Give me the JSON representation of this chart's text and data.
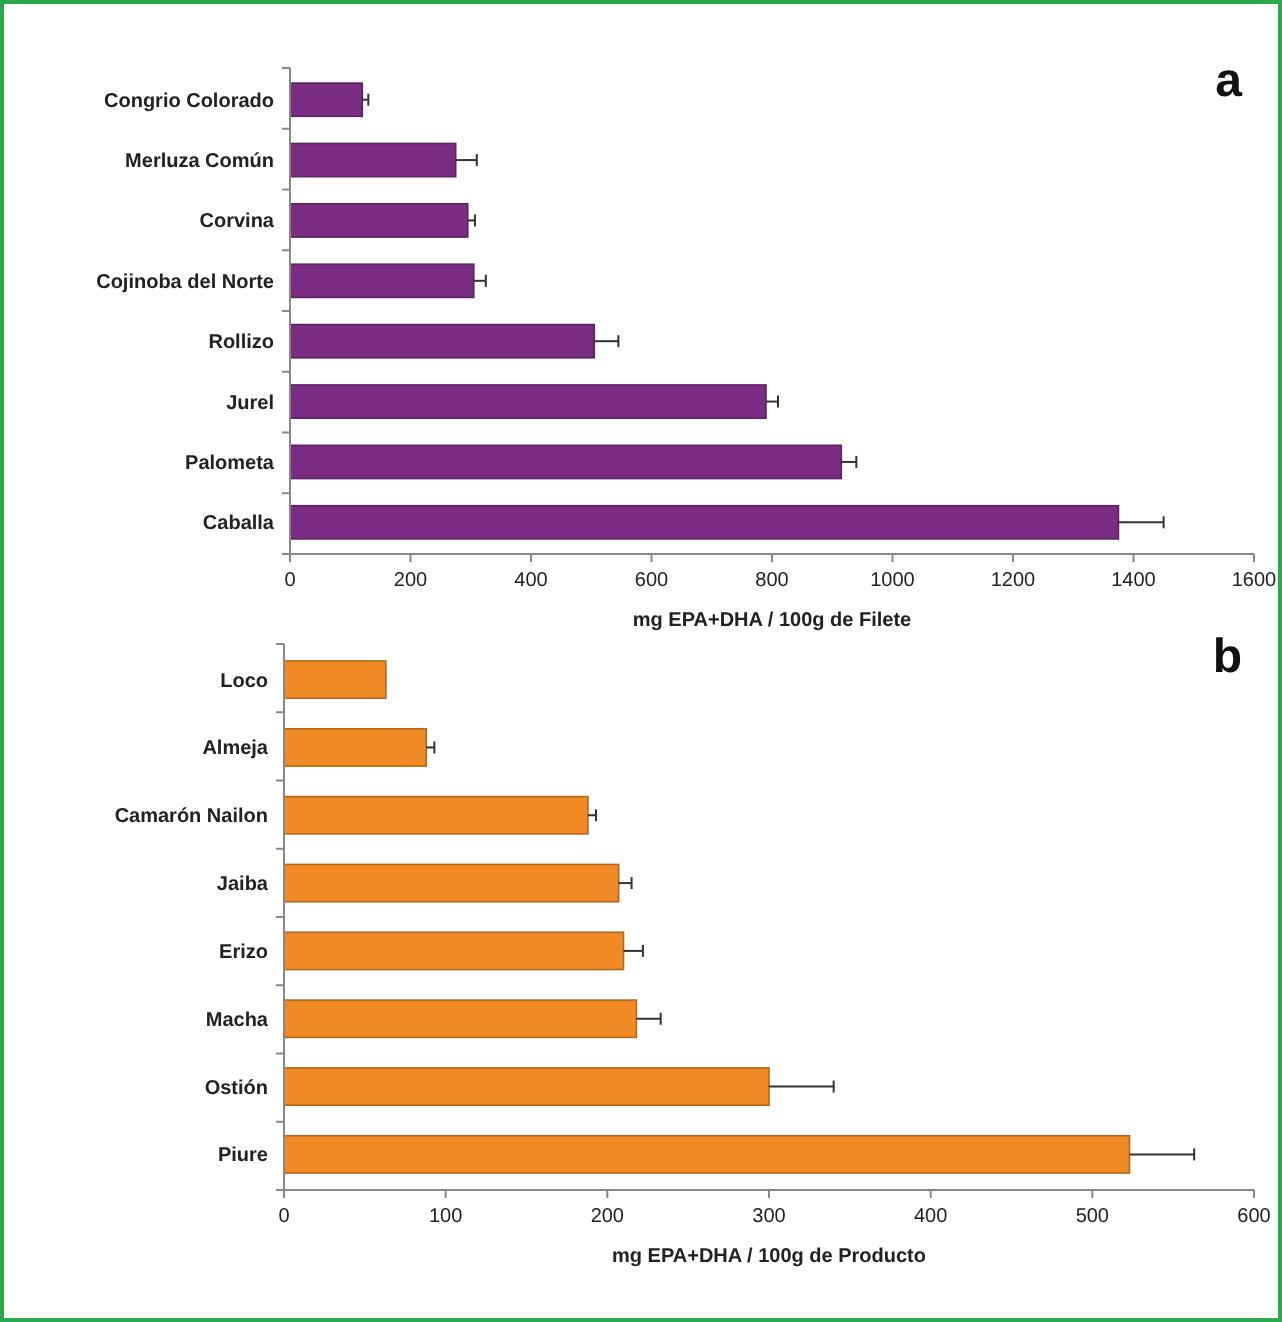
{
  "chart_data": [
    {
      "type": "bar",
      "orientation": "horizontal",
      "xlabel": "mg EPA+DHA / 100g de Filete",
      "annotations": [
        "a"
      ],
      "categories": [
        "Congrio Colorado",
        "Merluza Común",
        "Corvina",
        "Cojinoba del Norte",
        "Rollizo",
        "Jurel",
        "Palometa",
        "Caballa"
      ],
      "values": [
        120,
        275,
        295,
        305,
        505,
        790,
        915,
        1375
      ],
      "errors": [
        10,
        35,
        12,
        20,
        40,
        20,
        25,
        75
      ],
      "color": "#7b2c83",
      "xlim": [
        0,
        1600
      ],
      "xticks": [
        0,
        200,
        400,
        600,
        800,
        1000,
        1200,
        1400,
        1600
      ],
      "grid": false
    },
    {
      "type": "bar",
      "orientation": "horizontal",
      "xlabel": "mg EPA+DHA / 100g de Producto",
      "annotations": [
        "b"
      ],
      "categories": [
        "Loco",
        "Almeja",
        "Camarón Nailon",
        "Jaiba",
        "Erizo",
        "Macha",
        "Ostión",
        "Piure"
      ],
      "values": [
        63,
        88,
        188,
        207,
        210,
        218,
        300,
        523
      ],
      "errors": [
        null,
        5,
        5,
        8,
        12,
        15,
        40,
        40
      ],
      "color": "#f08a24",
      "xlim": [
        0,
        600
      ],
      "xticks": [
        0,
        100,
        200,
        300,
        400,
        500,
        600
      ],
      "grid": false
    }
  ]
}
